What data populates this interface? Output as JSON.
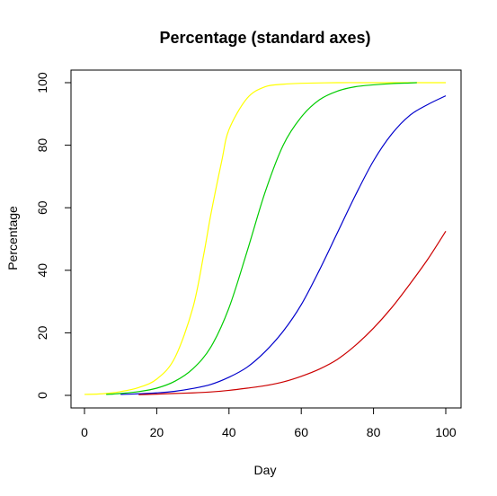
{
  "chart_data": {
    "type": "line",
    "title": "Percentage (standard axes)",
    "xlabel": "Day",
    "ylabel": "Percentage",
    "xlim": [
      0,
      100
    ],
    "ylim": [
      0,
      100
    ],
    "x_ticks": [
      0,
      20,
      40,
      60,
      80,
      100
    ],
    "y_ticks": [
      0,
      20,
      40,
      60,
      80,
      100
    ],
    "grid": false,
    "series": [
      {
        "color": "#ffff00",
        "x": [
          0,
          5,
          10,
          15,
          20,
          25,
          30,
          33,
          35,
          38,
          40,
          45,
          50,
          55,
          60,
          70,
          80,
          90,
          100
        ],
        "values": [
          0.3,
          0.5,
          1.2,
          2.5,
          5.2,
          12,
          28,
          45,
          58,
          75,
          85,
          95,
          98.7,
          99.5,
          99.8,
          100,
          100,
          100,
          100
        ]
      },
      {
        "color": "#00cc00",
        "x": [
          6,
          10,
          15,
          20,
          25,
          30,
          35,
          40,
          45,
          50,
          55,
          60,
          65,
          70,
          75,
          80,
          85,
          90,
          92
        ],
        "values": [
          0.3,
          0.6,
          1.2,
          2.3,
          4.5,
          8.5,
          15.5,
          28,
          46,
          65,
          80,
          89,
          94.5,
          97.3,
          98.7,
          99.3,
          99.7,
          99.9,
          100
        ]
      },
      {
        "color": "#0000cc",
        "x": [
          10,
          15,
          20,
          25,
          30,
          35,
          40,
          45,
          50,
          55,
          60,
          65,
          70,
          75,
          80,
          85,
          90,
          95,
          100
        ],
        "values": [
          0.3,
          0.5,
          0.8,
          1.3,
          2.2,
          3.5,
          5.8,
          9,
          14,
          20.5,
          29,
          40,
          52,
          64,
          75,
          83.5,
          89.5,
          93,
          95.8
        ]
      },
      {
        "color": "#cc0000",
        "x": [
          15,
          20,
          25,
          30,
          35,
          40,
          45,
          50,
          55,
          60,
          65,
          70,
          75,
          80,
          85,
          90,
          95,
          100
        ],
        "values": [
          0.2,
          0.4,
          0.6,
          0.8,
          1.1,
          1.6,
          2.3,
          3.1,
          4.3,
          6.1,
          8.4,
          11.5,
          16,
          21.5,
          28,
          35.5,
          43.5,
          52.5
        ]
      }
    ]
  }
}
